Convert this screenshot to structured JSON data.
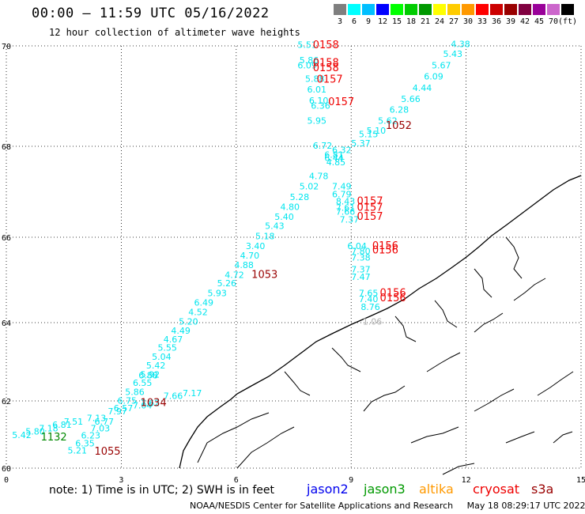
{
  "header": {
    "title": "00:00 – 11:59 UTC 05/16/2022",
    "subtitle": "12 hour collection of altimeter wave heights"
  },
  "color_scale": {
    "colors": [
      "#7f7f7f",
      "#00ffff",
      "#00bfff",
      "#0000ff",
      "#00ff00",
      "#00cc00",
      "#009900",
      "#ffff00",
      "#ffcc00",
      "#ff9900",
      "#ff0000",
      "#cc0000",
      "#990000",
      "#800040",
      "#990099",
      "#cc66cc",
      "#000000"
    ],
    "labels": [
      "3",
      "6",
      "9",
      "12",
      "15",
      "18",
      "21",
      "24",
      "27",
      "30",
      "33",
      "36",
      "39",
      "42",
      "45",
      "70",
      "(ft)"
    ]
  },
  "axes": {
    "x_ticks": [
      "0",
      "3",
      "6",
      "9",
      "12",
      "15"
    ],
    "y_ticks": [
      "70",
      "68",
      "66",
      "64",
      "62",
      "60"
    ]
  },
  "observations": [
    {
      "v": "5.51",
      "lon": 7.6,
      "lat": 69.96,
      "c": "#00e5ee"
    },
    {
      "v": "5.86",
      "lon": 7.65,
      "lat": 69.65,
      "c": "#00e5ee"
    },
    {
      "v": "6.09",
      "lon": 7.6,
      "lat": 69.55,
      "c": "#00e5ee"
    },
    {
      "v": "5.88",
      "lon": 7.8,
      "lat": 69.28,
      "c": "#00e5ee"
    },
    {
      "v": "6.01",
      "lon": 7.85,
      "lat": 69.07,
      "c": "#00e5ee"
    },
    {
      "v": "6.10",
      "lon": 7.9,
      "lat": 68.85,
      "c": "#00e5ee"
    },
    {
      "v": "6.36",
      "lon": 7.95,
      "lat": 68.75,
      "c": "#00e5ee"
    },
    {
      "v": "5.95",
      "lon": 7.85,
      "lat": 68.45,
      "c": "#00e5ee"
    },
    {
      "v": "6.72",
      "lon": 8.0,
      "lat": 67.95,
      "c": "#00e5ee"
    },
    {
      "v": "6.32",
      "lon": 8.5,
      "lat": 67.85,
      "c": "#00e5ee"
    },
    {
      "v": "6.81",
      "lon": 8.3,
      "lat": 67.75,
      "c": "#00e5ee"
    },
    {
      "v": "6.44",
      "lon": 8.3,
      "lat": 67.68,
      "c": "#00e5ee"
    },
    {
      "v": "4.85",
      "lon": 8.35,
      "lat": 67.58,
      "c": "#00e5ee"
    },
    {
      "v": "4.78",
      "lon": 7.9,
      "lat": 67.28,
      "c": "#00e5ee"
    },
    {
      "v": "5.02",
      "lon": 7.65,
      "lat": 67.05,
      "c": "#00e5ee"
    },
    {
      "v": "5.28",
      "lon": 7.4,
      "lat": 66.82,
      "c": "#00e5ee"
    },
    {
      "v": "4.80",
      "lon": 7.15,
      "lat": 66.6,
      "c": "#00e5ee"
    },
    {
      "v": "5.40",
      "lon": 7.0,
      "lat": 66.38,
      "c": "#00e5ee"
    },
    {
      "v": "5.43",
      "lon": 6.75,
      "lat": 66.18,
      "c": "#00e5ee"
    },
    {
      "v": "5.18",
      "lon": 6.5,
      "lat": 65.95,
      "c": "#00e5ee"
    },
    {
      "v": "3.40",
      "lon": 6.25,
      "lat": 65.72,
      "c": "#00e5ee"
    },
    {
      "v": "4.70",
      "lon": 6.1,
      "lat": 65.5,
      "c": "#00e5ee"
    },
    {
      "v": "4.88",
      "lon": 5.95,
      "lat": 65.28,
      "c": "#00e5ee"
    },
    {
      "v": "4.72",
      "lon": 5.7,
      "lat": 65.05,
      "c": "#00e5ee"
    },
    {
      "v": "5.26",
      "lon": 5.5,
      "lat": 64.85,
      "c": "#00e5ee"
    },
    {
      "v": "5.93",
      "lon": 5.25,
      "lat": 64.62,
      "c": "#00e5ee"
    },
    {
      "v": "6.49",
      "lon": 4.9,
      "lat": 64.4,
      "c": "#00e5ee"
    },
    {
      "v": "4.52",
      "lon": 4.75,
      "lat": 64.18,
      "c": "#00e5ee"
    },
    {
      "v": "5.20",
      "lon": 4.5,
      "lat": 63.95,
      "c": "#00e5ee"
    },
    {
      "v": "4.49",
      "lon": 4.3,
      "lat": 63.72,
      "c": "#00e5ee"
    },
    {
      "v": "4.67",
      "lon": 4.1,
      "lat": 63.5,
      "c": "#00e5ee"
    },
    {
      "v": "5.55",
      "lon": 3.95,
      "lat": 63.28,
      "c": "#00e5ee"
    },
    {
      "v": "5.04",
      "lon": 3.8,
      "lat": 63.05,
      "c": "#00e5ee"
    },
    {
      "v": "5.42",
      "lon": 3.65,
      "lat": 62.83,
      "c": "#00e5ee"
    },
    {
      "v": "5.92",
      "lon": 3.5,
      "lat": 62.6,
      "c": "#00e5ee"
    },
    {
      "v": "6.55",
      "lon": 3.3,
      "lat": 62.38,
      "c": "#00e5ee"
    },
    {
      "v": "6.88",
      "lon": 3.45,
      "lat": 62.58,
      "c": "#00e5ee"
    },
    {
      "v": "5.86",
      "lon": 3.1,
      "lat": 62.15,
      "c": "#00e5ee"
    },
    {
      "v": "6.75",
      "lon": 2.9,
      "lat": 61.92,
      "c": "#00e5ee"
    },
    {
      "v": "6.57",
      "lon": 2.8,
      "lat": 61.7,
      "c": "#00e5ee"
    },
    {
      "v": "7.04",
      "lon": 3.3,
      "lat": 61.78,
      "c": "#00e5ee"
    },
    {
      "v": "7.62",
      "lon": 3.5,
      "lat": 61.85,
      "c": "#00e5ee"
    },
    {
      "v": "7.17",
      "lon": 4.6,
      "lat": 62.12,
      "c": "#00e5ee"
    },
    {
      "v": "7.66",
      "lon": 4.1,
      "lat": 62.05,
      "c": "#00e5ee"
    },
    {
      "v": "7.97",
      "lon": 2.65,
      "lat": 61.6,
      "c": "#00e5ee"
    },
    {
      "v": "7.13",
      "lon": 2.1,
      "lat": 61.4,
      "c": "#00e5ee"
    },
    {
      "v": "7.51",
      "lon": 1.5,
      "lat": 61.3,
      "c": "#00e5ee"
    },
    {
      "v": "6.81",
      "lon": 1.2,
      "lat": 61.2,
      "c": "#00e5ee"
    },
    {
      "v": "7.18",
      "lon": 0.85,
      "lat": 61.1,
      "c": "#00e5ee"
    },
    {
      "v": "5.80",
      "lon": 0.5,
      "lat": 61.0,
      "c": "#00e5ee"
    },
    {
      "v": "5.42",
      "lon": 0.15,
      "lat": 60.9,
      "c": "#00e5ee"
    },
    {
      "v": "6.77",
      "lon": 2.3,
      "lat": 61.3,
      "c": "#00e5ee"
    },
    {
      "v": "7.03",
      "lon": 2.2,
      "lat": 61.1,
      "c": "#00e5ee"
    },
    {
      "v": "6.23",
      "lon": 1.95,
      "lat": 60.88,
      "c": "#00e5ee"
    },
    {
      "v": "6.35",
      "lon": 1.8,
      "lat": 60.65,
      "c": "#00e5ee"
    },
    {
      "v": "5.21",
      "lon": 1.6,
      "lat": 60.43,
      "c": "#00e5ee"
    },
    {
      "v": "7.49",
      "lon": 8.5,
      "lat": 67.05,
      "c": "#00e5ee"
    },
    {
      "v": "6.79",
      "lon": 8.5,
      "lat": 66.88,
      "c": "#00e5ee"
    },
    {
      "v": "8.43",
      "lon": 8.6,
      "lat": 66.72,
      "c": "#00e5ee"
    },
    {
      "v": "7.61",
      "lon": 8.6,
      "lat": 66.58,
      "c": "#00e5ee"
    },
    {
      "v": "7.66",
      "lon": 8.6,
      "lat": 66.5,
      "c": "#00e5ee"
    },
    {
      "v": "7.37",
      "lon": 8.7,
      "lat": 66.32,
      "c": "#00e5ee"
    },
    {
      "v": "6.04",
      "lon": 8.9,
      "lat": 65.72,
      "c": "#00e5ee"
    },
    {
      "v": "7.80",
      "lon": 9.0,
      "lat": 65.6,
      "c": "#00e5ee"
    },
    {
      "v": "7.38",
      "lon": 9.0,
      "lat": 65.45,
      "c": "#00e5ee"
    },
    {
      "v": "7.37",
      "lon": 9.0,
      "lat": 65.18,
      "c": "#00e5ee"
    },
    {
      "v": "7.47",
      "lon": 9.0,
      "lat": 65.0,
      "c": "#00e5ee"
    },
    {
      "v": "7.65",
      "lon": 9.2,
      "lat": 64.62,
      "c": "#00e5ee"
    },
    {
      "v": "7.40",
      "lon": 9.2,
      "lat": 64.48,
      "c": "#00e5ee"
    },
    {
      "v": "8.76",
      "lon": 9.25,
      "lat": 64.3,
      "c": "#00e5ee"
    },
    {
      "v": "1.06",
      "lon": 9.3,
      "lat": 63.95,
      "c": "#b0b0b0"
    },
    {
      "v": "4.38",
      "lon": 11.6,
      "lat": 69.98,
      "c": "#00e5ee"
    },
    {
      "v": "5.43",
      "lon": 11.4,
      "lat": 69.78,
      "c": "#00e5ee"
    },
    {
      "v": "5.67",
      "lon": 11.1,
      "lat": 69.55,
      "c": "#00e5ee"
    },
    {
      "v": "6.09",
      "lon": 10.9,
      "lat": 69.33,
      "c": "#00e5ee"
    },
    {
      "v": "4.44",
      "lon": 10.6,
      "lat": 69.1,
      "c": "#00e5ee"
    },
    {
      "v": "5.66",
      "lon": 10.3,
      "lat": 68.88,
      "c": "#00e5ee"
    },
    {
      "v": "6.28",
      "lon": 10.0,
      "lat": 68.67,
      "c": "#00e5ee"
    },
    {
      "v": "5.62",
      "lon": 9.7,
      "lat": 68.45,
      "c": "#00e5ee"
    },
    {
      "v": "5.10",
      "lon": 9.4,
      "lat": 68.25,
      "c": "#00e5ee"
    },
    {
      "v": "5.15",
      "lon": 9.2,
      "lat": 68.18,
      "c": "#00e5ee"
    },
    {
      "v": "5.37",
      "lon": 9.0,
      "lat": 68.0,
      "c": "#00e5ee"
    }
  ],
  "passes": [
    {
      "v": "0158",
      "lon": 8.0,
      "lat": 69.95,
      "c": "#ee0000"
    },
    {
      "v": "0158",
      "lon": 8.0,
      "lat": 69.6,
      "c": "#ee0000"
    },
    {
      "v": "0158",
      "lon": 8.0,
      "lat": 69.5,
      "c": "#ee0000"
    },
    {
      "v": "0157",
      "lon": 8.1,
      "lat": 69.27,
      "c": "#ee0000"
    },
    {
      "v": "0157",
      "lon": 8.4,
      "lat": 68.82,
      "c": "#ee0000"
    },
    {
      "v": "1052",
      "lon": 9.9,
      "lat": 68.35,
      "c": "#990000"
    },
    {
      "v": "0157",
      "lon": 9.15,
      "lat": 66.72,
      "c": "#ee0000"
    },
    {
      "v": "0157",
      "lon": 9.15,
      "lat": 66.58,
      "c": "#ee0000"
    },
    {
      "v": "0157",
      "lon": 9.15,
      "lat": 66.38,
      "c": "#ee0000"
    },
    {
      "v": "0156",
      "lon": 9.55,
      "lat": 65.72,
      "c": "#ee0000"
    },
    {
      "v": "0156",
      "lon": 9.55,
      "lat": 65.62,
      "c": "#ee0000"
    },
    {
      "v": "1053",
      "lon": 6.4,
      "lat": 65.05,
      "c": "#990000"
    },
    {
      "v": "0156",
      "lon": 9.75,
      "lat": 64.62,
      "c": "#ee0000"
    },
    {
      "v": "0156",
      "lon": 9.75,
      "lat": 64.5,
      "c": "#ee0000"
    },
    {
      "v": "1034",
      "lon": 3.5,
      "lat": 61.85,
      "c": "#990000"
    },
    {
      "v": "1132",
      "lon": 0.9,
      "lat": 60.82,
      "c": "#008800"
    },
    {
      "v": "1055",
      "lon": 2.3,
      "lat": 60.4,
      "c": "#990000"
    }
  ],
  "footer": {
    "note": "note: 1) Time is in UTC; 2) SWH is in feet",
    "missions": [
      {
        "label": "jason2",
        "color": "#0000ee"
      },
      {
        "label": "jason3",
        "color": "#009900"
      },
      {
        "label": "altika",
        "color": "#ff9900"
      },
      {
        "label": "cryosat",
        "color": "#ee0000"
      },
      {
        "label": "s3a",
        "color": "#990000"
      }
    ],
    "credit": "NOAA/NESDIS Center for Satellite Applications and Research     May 18 08:29:17 UTC 2022"
  }
}
